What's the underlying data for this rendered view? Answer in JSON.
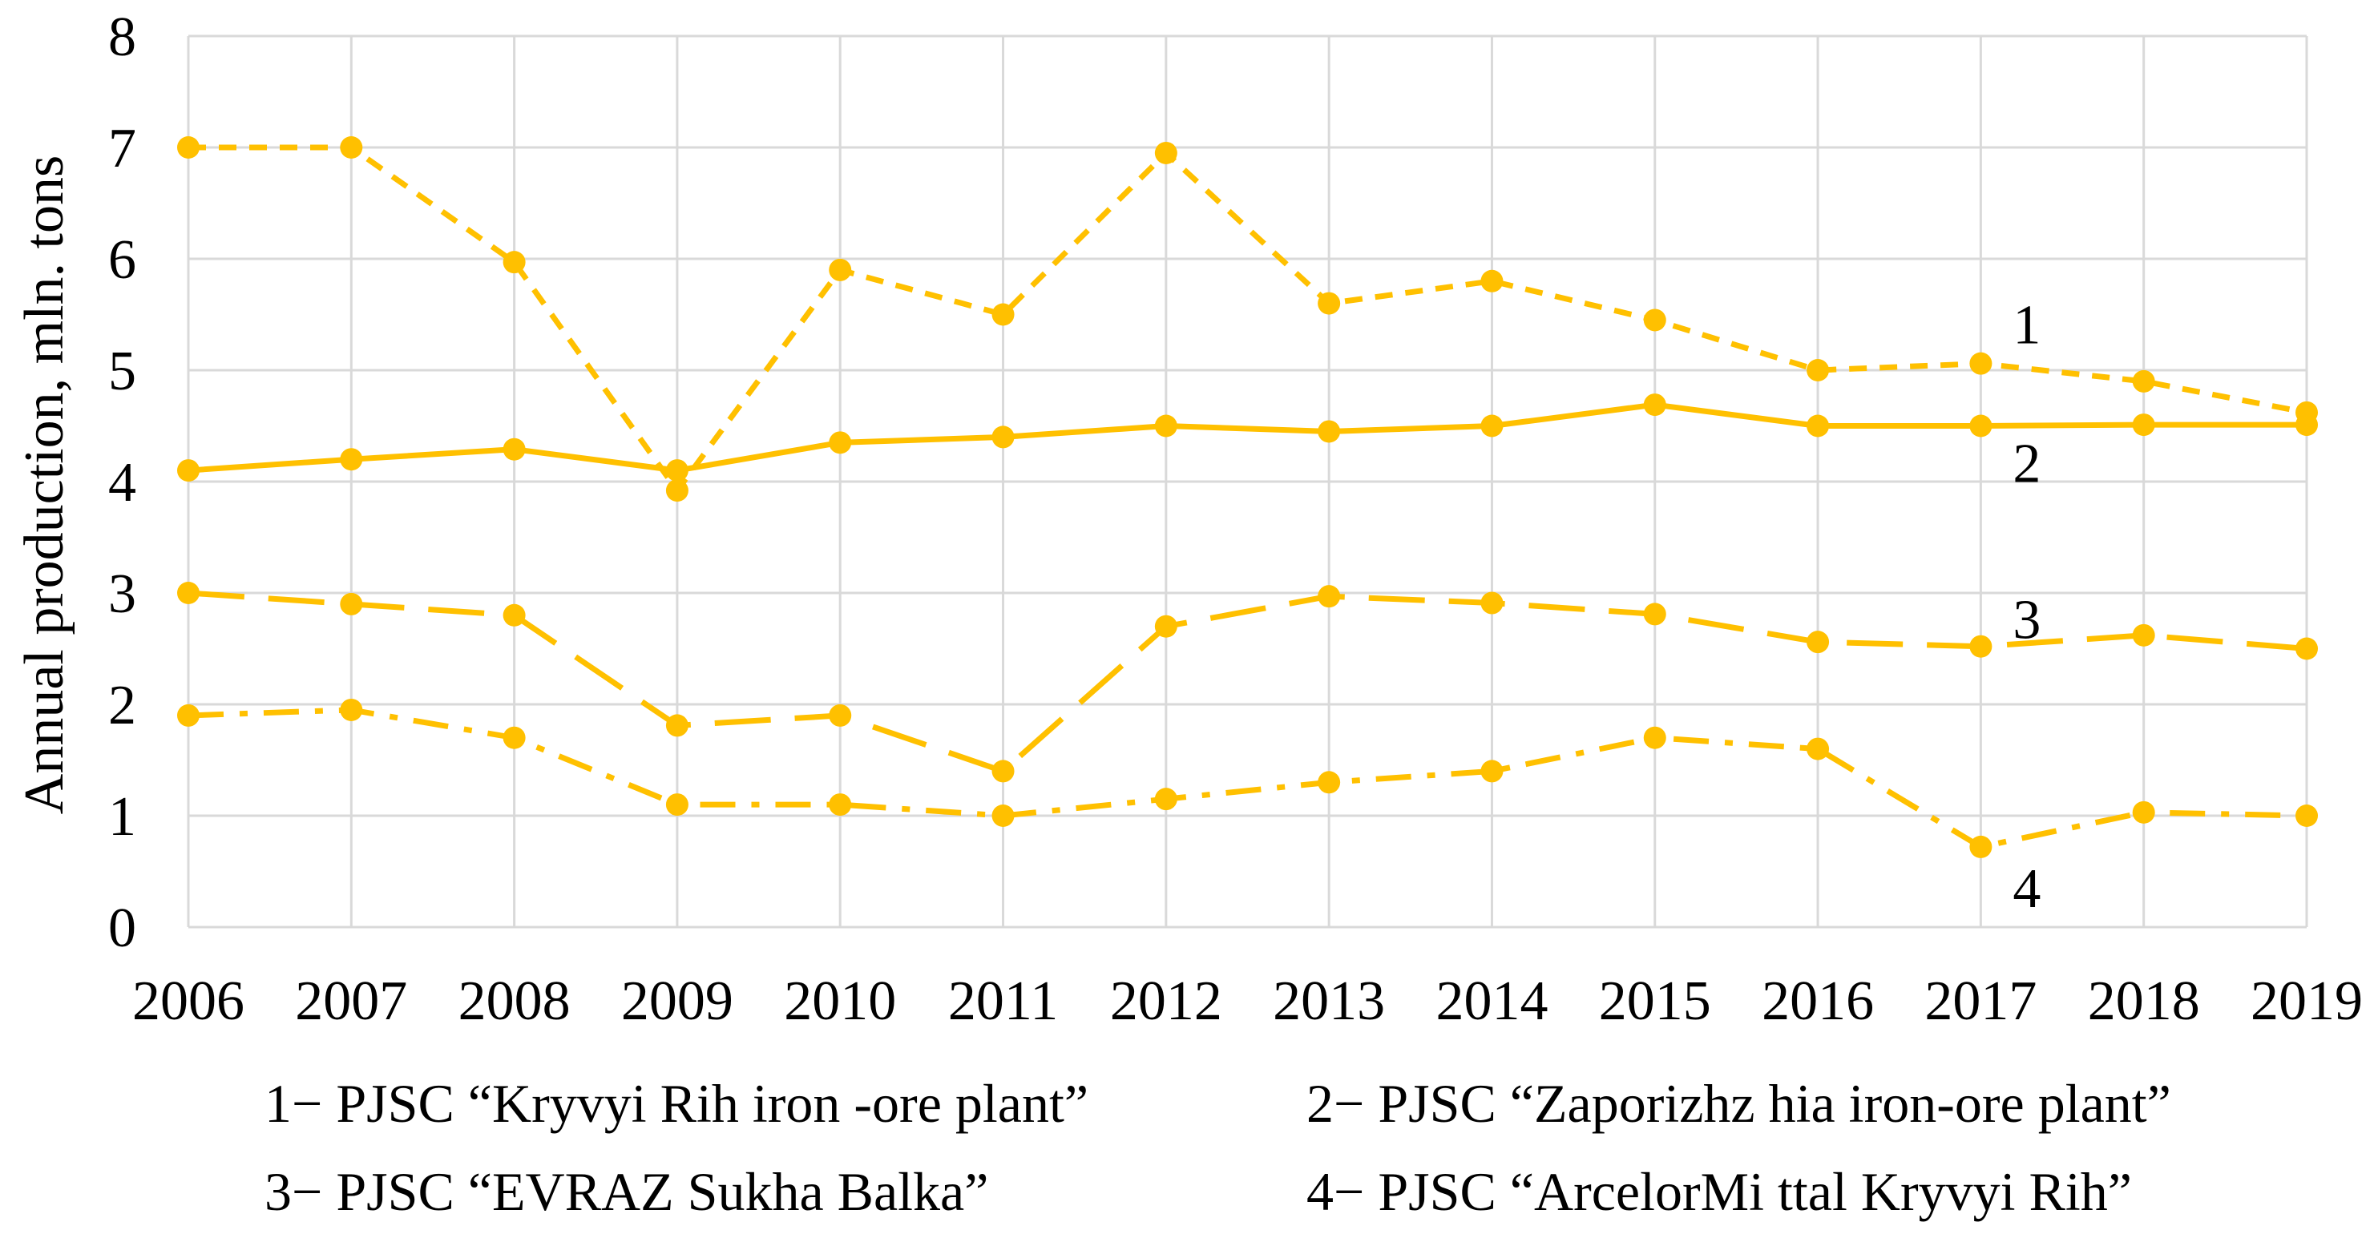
{
  "chart_data": {
    "type": "line",
    "title": "",
    "xlabel": "",
    "ylabel": "Annual production, mln. tons",
    "ylim": [
      0,
      8
    ],
    "yticks": [
      "0",
      "1",
      "2",
      "3",
      "4",
      "5",
      "6",
      "7",
      "8"
    ],
    "grid": true,
    "color": "#FFC000",
    "categories": [
      "2006",
      "2007",
      "2008",
      "2009",
      "2010",
      "2011",
      "2012",
      "2013",
      "2014",
      "2015",
      "2016",
      "2017",
      "2018",
      "2019"
    ],
    "series": [
      {
        "name": "PJSC “Kryvyi Rih iron-ore plant”",
        "number": "1",
        "style": "short-dash",
        "values": [
          7.0,
          7.0,
          5.97,
          3.92,
          5.9,
          5.5,
          6.95,
          5.6,
          5.8,
          5.45,
          5.0,
          5.06,
          4.9,
          4.62
        ]
      },
      {
        "name": "PJSC “Zaporizhzhia iron-ore plant”",
        "number": "2",
        "style": "solid",
        "values": [
          4.1,
          4.2,
          4.29,
          4.1,
          4.35,
          4.4,
          4.5,
          4.45,
          4.5,
          4.69,
          4.5,
          4.5,
          4.51,
          4.51
        ]
      },
      {
        "name": "PJSC “EVRAZ Sukha Balka”",
        "number": "3",
        "style": "long-dash",
        "values": [
          3.0,
          2.9,
          2.8,
          1.81,
          1.9,
          1.4,
          2.7,
          2.97,
          2.91,
          2.81,
          2.56,
          2.52,
          2.62,
          2.5
        ]
      },
      {
        "name": "PJSC “ArcelorMittal Kryvyi Rih”",
        "number": "4",
        "style": "dash-dot",
        "values": [
          1.9,
          1.95,
          1.7,
          1.1,
          1.1,
          1.0,
          1.15,
          1.3,
          1.4,
          1.7,
          1.6,
          0.72,
          1.03,
          1.0
        ]
      }
    ],
    "annotations": [
      {
        "label": "1",
        "series": "PJSC “Kryvyi Rih iron-ore plant”",
        "near": "2017"
      },
      {
        "label": "2",
        "series": "PJSC “Zaporizhzhia iron-ore plant”",
        "near": "2017"
      },
      {
        "label": "3",
        "series": "PJSC “EVRAZ Sukha Balka”",
        "near": "2017"
      },
      {
        "label": "4",
        "series": "PJSC “ArcelorMittal Kryvyi Rih”",
        "near": "2017"
      }
    ],
    "legend": {
      "position": "bottom",
      "items": [
        "1− PJSC “Kryvyi Rih iron -ore plant”",
        "2− PJSC “Zaporizhz hia iron-ore plant”",
        "3− PJSC “EVRAZ  Sukha Balka”",
        "4− PJSC “ArcelorMi ttal Kryvyi Rih”"
      ]
    }
  }
}
